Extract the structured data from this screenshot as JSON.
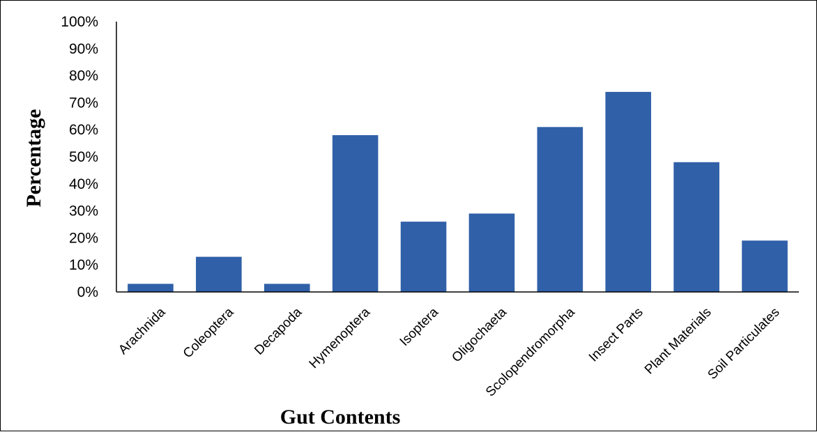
{
  "chart_data": {
    "type": "bar",
    "categories": [
      "Arachnida",
      "Coleoptera",
      "Decapoda",
      "Hymenoptera",
      "Isoptera",
      "Oligochaeta",
      "Scolopendromorpha",
      "Insect Parts",
      "Plant Materials",
      "Soil Particulates"
    ],
    "series": [
      {
        "values": [
          3,
          13,
          3,
          58,
          26,
          29,
          61,
          74,
          48,
          19
        ]
      }
    ],
    "xlabel": "Gut Contents",
    "ylabel": "Percentage",
    "ylim": [
      0,
      100
    ],
    "yticks": [
      "0%",
      "10%",
      "20%",
      "30%",
      "40%",
      "50%",
      "60%",
      "70%",
      "80%",
      "90%",
      "100%"
    ],
    "grid": false,
    "legend": "none",
    "bar_color": "#3060a8"
  }
}
